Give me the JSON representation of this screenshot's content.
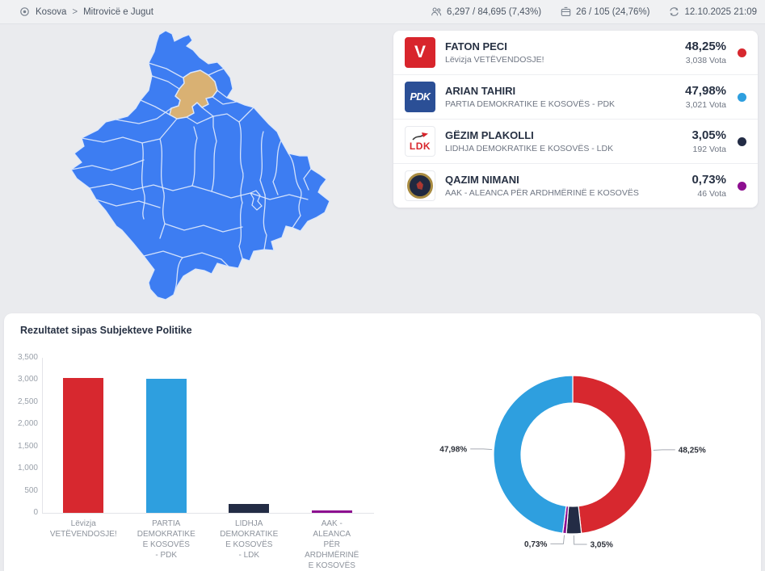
{
  "topbar": {
    "breadcrumb": {
      "root": "Kosova",
      "separator": ">",
      "current": "Mitrovicë e Jugut"
    },
    "voters_stat": "6,297 / 84,695 (7,43%)",
    "stations_stat": "26 / 105 (24,76%)",
    "timestamp": "12.10.2025 21:09"
  },
  "map": {
    "highlighted_region": "Mitrovicë e Jugut",
    "fill_color": "#3d7df2",
    "border_color": "#dbe7fb",
    "highlight_color": "#d9b173"
  },
  "candidates": [
    {
      "name": "FATON PECI",
      "party": "Lëvizja VETËVENDOSJE!",
      "percent": "48,25%",
      "votes": "3,038 Vota",
      "color": "#d7282f",
      "logo": "VV",
      "logo_text": "V"
    },
    {
      "name": "ARIAN TAHIRI",
      "party": "PARTIA DEMOKRATIKE E KOSOVËS - PDK",
      "percent": "47,98%",
      "votes": "3,021 Vota",
      "color": "#2e9fdf",
      "logo": "PDK",
      "logo_text": "PDK"
    },
    {
      "name": "GËZIM PLAKOLLI",
      "party": "LIDHJA DEMOKRATIKE E KOSOVËS - LDK",
      "percent": "3,05%",
      "votes": "192 Vota",
      "color": "#232c45",
      "logo": "LDK",
      "logo_text": "LDK"
    },
    {
      "name": "QAZIM NIMANI",
      "party": "AAK - ALEANCA PËR ARDHMËRINË E KOSOVËS",
      "percent": "0,73%",
      "votes": "46 Vota",
      "color": "#8d0f90",
      "logo": "AAK",
      "logo_text": ""
    }
  ],
  "section_title": "Rezultatet sipas Subjekteve Politike",
  "chart_data": [
    {
      "type": "bar",
      "title": "Rezultatet sipas Subjekteve Politike",
      "categories": [
        "Lëvizja VETËVENDOSJE!",
        "PARTIA DEMOKRATIKE E KOSOVËS - PDK",
        "LIDHJA DEMOKRATIKE E KOSOVËS - LDK",
        "AAK - ALEANCA PËR ARDHMËRINË E KOSOVËS"
      ],
      "category_lines": [
        [
          "Lëvizja",
          "VETËVENDOSJE!"
        ],
        [
          "PARTIA",
          "DEMOKRATIKE",
          "E KOSOVËS",
          "- PDK"
        ],
        [
          "LIDHJA",
          "DEMOKRATIKE",
          "E KOSOVËS",
          "- LDK"
        ],
        [
          "AAK -",
          "ALEANCA",
          "PËR",
          "ARDHMËRINË",
          "E KOSOVËS"
        ]
      ],
      "values": [
        3038,
        3021,
        192,
        46
      ],
      "colors": [
        "#d7282f",
        "#2e9fdf",
        "#232c45",
        "#8d0f90"
      ],
      "xlabel": "",
      "ylabel": "",
      "ylim": [
        0,
        3500
      ],
      "ytick_labels": [
        "0",
        "500",
        "1,000",
        "1,500",
        "2,000",
        "2,500",
        "3,000",
        "3,500"
      ],
      "grid": false,
      "legend": false
    },
    {
      "type": "pie",
      "donut": true,
      "start_angle_deg": 0,
      "direction": "clockwise",
      "labels_position": "outside",
      "slices": [
        {
          "label": "48,25%",
          "value": 48.25,
          "color": "#d7282f",
          "name": "Lëvizja VETËVENDOSJE!"
        },
        {
          "label": "3,05%",
          "value": 3.05,
          "color": "#232c45",
          "name": "LIDHJA DEMOKRATIKE E KOSOVËS - LDK"
        },
        {
          "label": "0,73%",
          "value": 0.73,
          "color": "#8d0f90",
          "name": "AAK - ALEANCA PËR ARDHMËRINË E KOSOVËS"
        },
        {
          "label": "47,98%",
          "value": 47.98,
          "color": "#2e9fdf",
          "name": "PARTIA DEMOKRATIKE E KOSOVËS - PDK"
        }
      ]
    }
  ]
}
